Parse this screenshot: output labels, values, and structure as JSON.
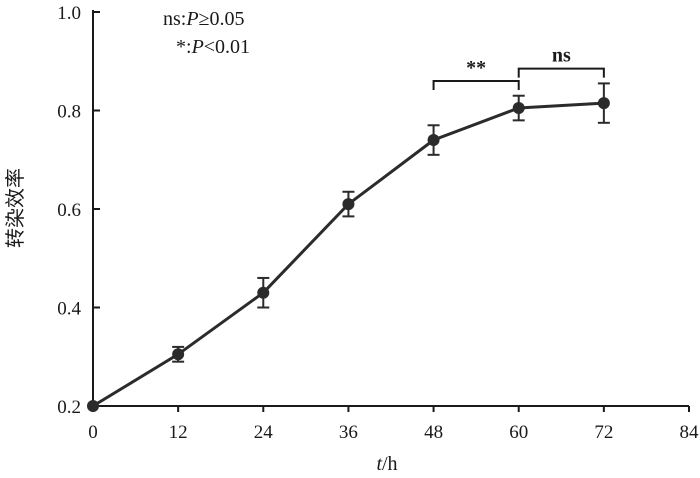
{
  "chart_data": {
    "type": "line",
    "xlabel_italic": "t",
    "xlabel_unit": "/h",
    "ylabel": "转染效率",
    "xlim": [
      0,
      84
    ],
    "ylim": [
      0.2,
      1.0
    ],
    "x_ticks": [
      "0",
      "12",
      "24",
      "36",
      "48",
      "60",
      "72",
      "84"
    ],
    "y_ticks": [
      "0.2",
      "0.4",
      "0.6",
      "0.8",
      "1.0"
    ],
    "series": [
      {
        "x": [
          0,
          12,
          24,
          36,
          48,
          60,
          72
        ],
        "y": [
          0.2,
          0.305,
          0.43,
          0.61,
          0.74,
          0.805,
          0.815
        ],
        "err": [
          0,
          0.015,
          0.03,
          0.025,
          0.03,
          0.025,
          0.04
        ]
      }
    ],
    "legend_lines": [
      {
        "prefix": "ns:",
        "italic": "P",
        "suffix": "≥0.05"
      },
      {
        "prefix": "*:",
        "italic": "P",
        "suffix": "<0.01"
      }
    ],
    "significance": [
      {
        "from": 48,
        "to": 60,
        "label": "**",
        "y": 0.86
      },
      {
        "from": 60,
        "to": 72,
        "label": "ns",
        "y": 0.885
      }
    ]
  }
}
